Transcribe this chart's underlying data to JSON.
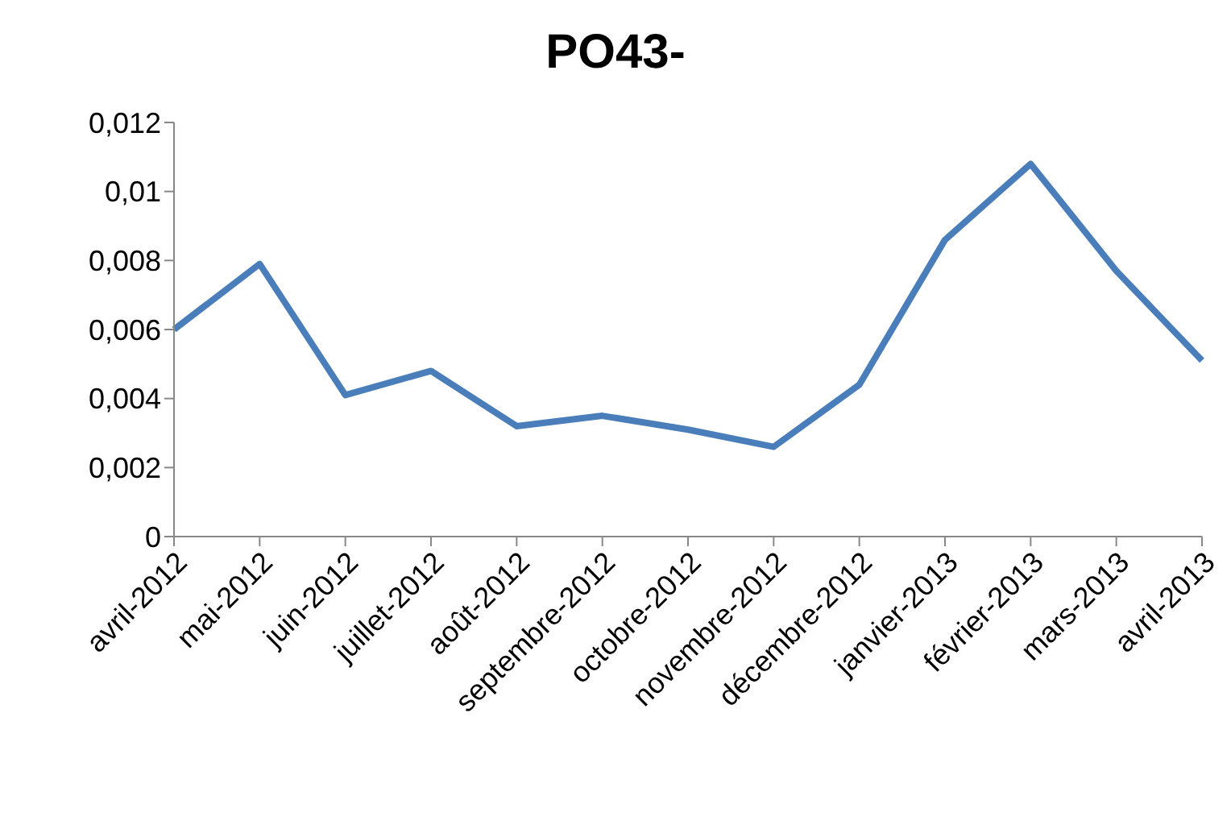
{
  "chart_data": {
    "type": "line",
    "title": "PO43-",
    "categories": [
      "avril-2012",
      "mai-2012",
      "juin-2012",
      "juillet-2012",
      "août-2012",
      "septembre-2012",
      "octobre-2012",
      "novembre-2012",
      "décembre-2012",
      "janvier-2013",
      "février-2013",
      "mars-2013",
      "avril-2013"
    ],
    "series": [
      {
        "color": "#4a7ebb",
        "values": [
          0.006,
          0.0079,
          0.0041,
          0.0048,
          0.0032,
          0.0035,
          0.0031,
          0.0026,
          0.0044,
          0.0086,
          0.0108,
          0.0077,
          0.0051
        ]
      }
    ],
    "ylim": [
      0,
      0.012
    ],
    "yticks": [
      0,
      {
        "value": 0.002,
        "label": "0,002"
      },
      {
        "value": 0.004,
        "label": "0,004"
      },
      {
        "value": 0.006,
        "label": "0,006"
      },
      {
        "value": 0.008,
        "label": "0,008"
      },
      {
        "value": 0.01,
        "label": "0,01"
      },
      {
        "value": 0.012,
        "label": "0,012"
      }
    ],
    "grid": false,
    "legend": false,
    "marker": "none",
    "line_style": "solid"
  }
}
